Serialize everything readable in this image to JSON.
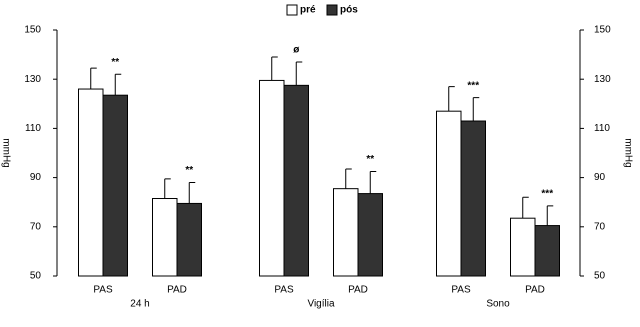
{
  "chart_data": {
    "type": "bar",
    "categories": [
      "PAS",
      "PAD",
      "PAS",
      "PAD",
      "PAS",
      "PAD"
    ],
    "groups": [
      "24 h",
      "Vigília",
      "Sono"
    ],
    "series": [
      {
        "name": "pré",
        "color": "#ffffff",
        "values": [
          126,
          81.5,
          129.5,
          85.5,
          117,
          73.5
        ],
        "errors": [
          8.5,
          8,
          9.5,
          8,
          10,
          8.5
        ]
      },
      {
        "name": "pós",
        "color": "#333333",
        "values": [
          123.5,
          79.5,
          127.5,
          83.5,
          113,
          70.5
        ],
        "errors": [
          8.5,
          8.5,
          9.5,
          9,
          9.5,
          8
        ]
      }
    ],
    "annotations": [
      "**",
      "**",
      "ø",
      "**",
      "***",
      "***"
    ],
    "ylabel": "mmHg",
    "y2label": "mmHg",
    "ylim": [
      50,
      150
    ],
    "yticks": [
      50,
      70,
      90,
      110,
      130,
      150
    ],
    "y2lim": [
      50,
      150
    ],
    "y2ticks": [
      50,
      70,
      90,
      110,
      130,
      150
    ],
    "legend": "top"
  }
}
